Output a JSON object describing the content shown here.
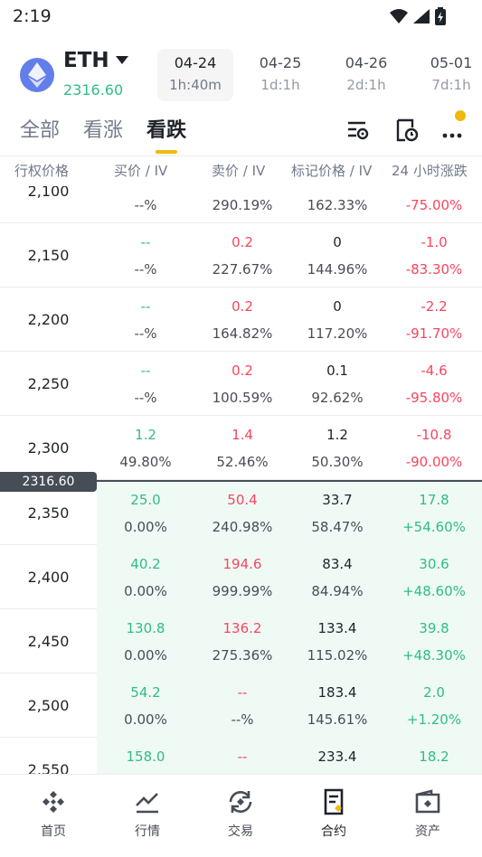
{
  "status": {
    "time": "2:19"
  },
  "coin": {
    "symbol": "ETH",
    "price": "2316.60",
    "icon": "ethereum-icon"
  },
  "expiries": [
    {
      "date": "04-24",
      "time": "1h:40m",
      "active": true
    },
    {
      "date": "04-25",
      "time": "1d:1h",
      "active": false
    },
    {
      "date": "04-26",
      "time": "2d:1h",
      "active": false
    },
    {
      "date": "05-01",
      "time": "7d:1h",
      "active": false
    }
  ],
  "tabs": {
    "all": "全部",
    "call": "看涨",
    "put": "看跌"
  },
  "headers": {
    "strike": "行权价格",
    "bid": "买价 / IV",
    "ask": "卖价 / IV",
    "mark": "标记价格 / IV",
    "change": "24 小时涨跌"
  },
  "atm_price": "2316.60",
  "rows": [
    {
      "strike": "2,100",
      "bid": "",
      "bid_iv": "--%",
      "ask": "",
      "ask_iv": "290.19%",
      "mark": "",
      "mark_iv": "162.33%",
      "chg": "",
      "chg_pct": "-75.00%"
    },
    {
      "strike": "2,150",
      "bid": "--",
      "bid_iv": "--%",
      "ask": "0.2",
      "ask_iv": "227.67%",
      "mark": "0",
      "mark_iv": "144.96%",
      "chg": "-1.0",
      "chg_pct": "-83.30%"
    },
    {
      "strike": "2,200",
      "bid": "--",
      "bid_iv": "--%",
      "ask": "0.2",
      "ask_iv": "164.82%",
      "mark": "0",
      "mark_iv": "117.20%",
      "chg": "-2.2",
      "chg_pct": "-91.70%"
    },
    {
      "strike": "2,250",
      "bid": "--",
      "bid_iv": "--%",
      "ask": "0.2",
      "ask_iv": "100.59%",
      "mark": "0.1",
      "mark_iv": "92.62%",
      "chg": "-4.6",
      "chg_pct": "-95.80%"
    },
    {
      "strike": "2,300",
      "bid": "1.2",
      "bid_iv": "49.80%",
      "ask": "1.4",
      "ask_iv": "52.46%",
      "mark": "1.2",
      "mark_iv": "50.30%",
      "chg": "-10.8",
      "chg_pct": "-90.00%"
    },
    {
      "strike": "2,350",
      "bid": "25.0",
      "bid_iv": "0.00%",
      "ask": "50.4",
      "ask_iv": "240.98%",
      "mark": "33.7",
      "mark_iv": "58.47%",
      "chg": "17.8",
      "chg_pct": "+54.60%"
    },
    {
      "strike": "2,400",
      "bid": "40.2",
      "bid_iv": "0.00%",
      "ask": "194.6",
      "ask_iv": "999.99%",
      "mark": "83.4",
      "mark_iv": "84.94%",
      "chg": "30.6",
      "chg_pct": "+48.60%"
    },
    {
      "strike": "2,450",
      "bid": "130.8",
      "bid_iv": "0.00%",
      "ask": "136.2",
      "ask_iv": "275.36%",
      "mark": "133.4",
      "mark_iv": "115.02%",
      "chg": "39.8",
      "chg_pct": "+48.30%"
    },
    {
      "strike": "2,500",
      "bid": "54.2",
      "bid_iv": "0.00%",
      "ask": "--",
      "ask_iv": "--%",
      "mark": "183.4",
      "mark_iv": "145.61%",
      "chg": "2.0",
      "chg_pct": "+1.20%"
    },
    {
      "strike": "2,550",
      "bid": "158.0",
      "bid_iv": "",
      "ask": "--",
      "ask_iv": "",
      "mark": "233.4",
      "mark_iv": "",
      "chg": "18.2",
      "chg_pct": ""
    }
  ],
  "nav": [
    {
      "label": "首页",
      "icon": "home-icon"
    },
    {
      "label": "行情",
      "icon": "markets-icon"
    },
    {
      "label": "交易",
      "icon": "trade-icon"
    },
    {
      "label": "合约",
      "icon": "futures-icon"
    },
    {
      "label": "资产",
      "icon": "wallet-icon"
    }
  ],
  "colors": {
    "up": "#2ebd85",
    "down": "#f6465d",
    "accent": "#f0b90b",
    "eth": "#627eea"
  }
}
